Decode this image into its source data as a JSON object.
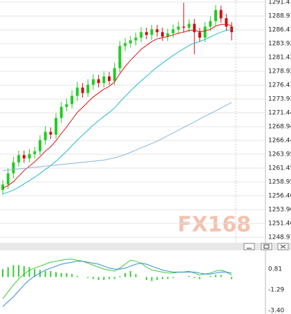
{
  "chart_data": [
    {
      "type": "candlestick",
      "watermark": "FX168",
      "ylim": [
        1248.1,
        1291.8
      ],
      "yticks": [
        1291.41,
        1288.91,
        1286.41,
        1283.92,
        1281.42,
        1278.92,
        1276.43,
        1273.93,
        1271.44,
        1268.94,
        1266.44,
        1263.95,
        1261.45,
        1258.95,
        1256.46,
        1253.96,
        1251.46,
        1248.97
      ],
      "grid": true,
      "up_color": "#22cc22",
      "down_color": "#cc1111",
      "open": [
        1257.5,
        1258.5,
        1260.5,
        1262.5,
        1263.8,
        1263.2,
        1264.0,
        1264.5,
        1266.5,
        1268.0,
        1267.5,
        1270.5,
        1272.5,
        1273.0,
        1274.5,
        1276.0,
        1275.0,
        1276.5,
        1277.5,
        1276.8,
        1278.0,
        1277.2,
        1279.5,
        1283.5,
        1284.0,
        1284.5,
        1285.0,
        1286.0,
        1285.5,
        1286.5,
        1286.0,
        1285.2,
        1285.8,
        1286.5,
        1287.0,
        1286.8,
        1287.5,
        1286.0,
        1285.0,
        1287.0,
        1288.0,
        1290.0,
        1288.5,
        1287.0
      ],
      "high": [
        1259.3,
        1261.4,
        1263.5,
        1264.6,
        1264.6,
        1264.9,
        1265.3,
        1267.4,
        1269.0,
        1268.8,
        1271.4,
        1273.4,
        1274.0,
        1275.5,
        1277.0,
        1276.8,
        1277.5,
        1278.4,
        1278.3,
        1278.9,
        1278.8,
        1280.5,
        1284.4,
        1284.9,
        1285.3,
        1285.9,
        1286.9,
        1286.8,
        1287.3,
        1287.3,
        1286.8,
        1286.6,
        1287.4,
        1287.9,
        1291.3,
        1288.3,
        1288.4,
        1286.8,
        1287.8,
        1288.9,
        1290.9,
        1290.8,
        1289.3,
        1287.8
      ],
      "low": [
        1256.6,
        1257.7,
        1259.6,
        1261.7,
        1262.4,
        1262.5,
        1263.2,
        1263.8,
        1265.7,
        1266.7,
        1266.8,
        1269.6,
        1271.7,
        1272.2,
        1273.6,
        1274.2,
        1274.3,
        1275.6,
        1276.0,
        1276.0,
        1276.5,
        1276.4,
        1278.7,
        1282.6,
        1283.2,
        1283.6,
        1284.2,
        1284.7,
        1284.6,
        1285.2,
        1284.4,
        1284.4,
        1285.0,
        1285.6,
        1286.0,
        1286.0,
        1282.0,
        1284.2,
        1284.2,
        1286.2,
        1287.2,
        1287.7,
        1286.2,
        1284.5
      ],
      "close": [
        1258.5,
        1260.5,
        1262.5,
        1263.8,
        1263.2,
        1264.0,
        1264.5,
        1266.5,
        1268.0,
        1267.5,
        1270.5,
        1272.5,
        1273.0,
        1274.5,
        1276.0,
        1275.0,
        1276.5,
        1277.5,
        1276.8,
        1278.0,
        1277.2,
        1279.5,
        1283.5,
        1284.0,
        1284.5,
        1285.0,
        1286.0,
        1285.5,
        1286.5,
        1286.0,
        1285.2,
        1285.8,
        1286.5,
        1287.0,
        1286.8,
        1287.5,
        1286.0,
        1285.0,
        1287.0,
        1288.0,
        1290.0,
        1288.5,
        1287.0,
        1286.0
      ],
      "series": [
        {
          "color": "#dd1111",
          "values": [
            1257.8,
            1258.3,
            1259.0,
            1260.0,
            1261.0,
            1261.8,
            1262.6,
            1263.5,
            1264.5,
            1265.3,
            1266.4,
            1267.7,
            1268.9,
            1270.2,
            1271.5,
            1272.4,
            1273.4,
            1274.3,
            1275.0,
            1275.7,
            1276.2,
            1277.0,
            1278.5,
            1279.8,
            1280.9,
            1281.9,
            1282.9,
            1283.6,
            1284.3,
            1284.8,
            1285.0,
            1285.2,
            1285.5,
            1285.8,
            1286.0,
            1286.3,
            1286.3,
            1286.1,
            1286.2,
            1286.5,
            1287.1,
            1287.4,
            1287.4,
            1287.2
          ]
        },
        {
          "color": "#22b8d0",
          "values": [
            1256.8,
            1257.1,
            1257.5,
            1258.0,
            1258.6,
            1259.2,
            1259.8,
            1260.5,
            1261.2,
            1261.9,
            1262.7,
            1263.6,
            1264.5,
            1265.5,
            1266.5,
            1267.4,
            1268.3,
            1269.2,
            1270.0,
            1270.8,
            1271.5,
            1272.3,
            1273.4,
            1274.4,
            1275.4,
            1276.3,
            1277.2,
            1278.0,
            1278.9,
            1279.7,
            1280.4,
            1281.1,
            1281.8,
            1282.4,
            1283.0,
            1283.6,
            1284.0,
            1284.3,
            1284.7,
            1285.1,
            1285.6,
            1286.0,
            1286.3,
            1286.5
          ]
        },
        {
          "color": "#8ab4d8",
          "values": [
            1261.0,
            1261.1,
            1261.2,
            1261.3,
            1261.4,
            1261.5,
            1261.6,
            1261.7,
            1261.8,
            1261.9,
            1262.0,
            1262.1,
            1262.2,
            1262.3,
            1262.4,
            1262.5,
            1262.6,
            1262.7,
            1262.8,
            1262.9,
            1263.1,
            1263.3,
            1263.6,
            1263.9,
            1264.3,
            1264.7,
            1265.1,
            1265.5,
            1265.9,
            1266.3,
            1266.8,
            1267.3,
            1267.8,
            1268.3,
            1268.8,
            1269.3,
            1269.8,
            1270.3,
            1270.8,
            1271.3,
            1271.8,
            1272.3,
            1272.8,
            1273.3
          ]
        }
      ]
    },
    {
      "type": "macd",
      "ylim": [
        -3.75,
        2.56
      ],
      "yticks": [
        0.81,
        -1.29,
        {
          "value": -3.4,
          "label": "-3.40"
        }
      ],
      "histogram_color": "#33cc33",
      "histogram": [
        0.8,
        1.0,
        1.2,
        1.2,
        1.1,
        1.0,
        0.8,
        0.7,
        0.6,
        0.6,
        0.5,
        0.4,
        0.4,
        0.3,
        0.1,
        0.0,
        -0.1,
        -0.2,
        -0.3,
        -0.3,
        -0.2,
        -0.2,
        0.1,
        0.4,
        0.6,
        0.3,
        0.0,
        -0.3,
        -0.4,
        -0.3,
        -0.2,
        -0.2,
        -0.1,
        0.0,
        0.0,
        0.1,
        -0.1,
        -0.2,
        0.0,
        0.1,
        0.2,
        0.2,
        0.0,
        -0.2
      ],
      "series": [
        {
          "color": "#33cc33",
          "values": [
            -2.2,
            -1.5,
            -0.8,
            -0.2,
            0.3,
            0.7,
            0.9,
            1.1,
            1.3,
            1.5,
            1.6,
            1.7,
            1.8,
            1.8,
            1.7,
            1.6,
            1.4,
            1.2,
            1.0,
            0.8,
            0.7,
            0.6,
            0.9,
            1.3,
            1.7,
            1.6,
            1.4,
            1.0,
            0.7,
            0.6,
            0.5,
            0.4,
            0.4,
            0.5,
            0.5,
            0.6,
            0.4,
            0.2,
            0.3,
            0.4,
            0.6,
            0.7,
            0.5,
            0.2
          ]
        },
        {
          "color": "#3388dd",
          "values": [
            -3.0,
            -2.5,
            -2.0,
            -1.4,
            -0.8,
            -0.3,
            0.1,
            0.4,
            0.7,
            0.9,
            1.1,
            1.3,
            1.4,
            1.5,
            1.6,
            1.6,
            1.5,
            1.4,
            1.3,
            1.1,
            0.9,
            0.8,
            0.8,
            0.9,
            1.1,
            1.3,
            1.4,
            1.3,
            1.1,
            0.9,
            0.7,
            0.6,
            0.5,
            0.5,
            0.5,
            0.5,
            0.5,
            0.4,
            0.3,
            0.3,
            0.4,
            0.5,
            0.5,
            0.4
          ]
        }
      ]
    }
  ]
}
